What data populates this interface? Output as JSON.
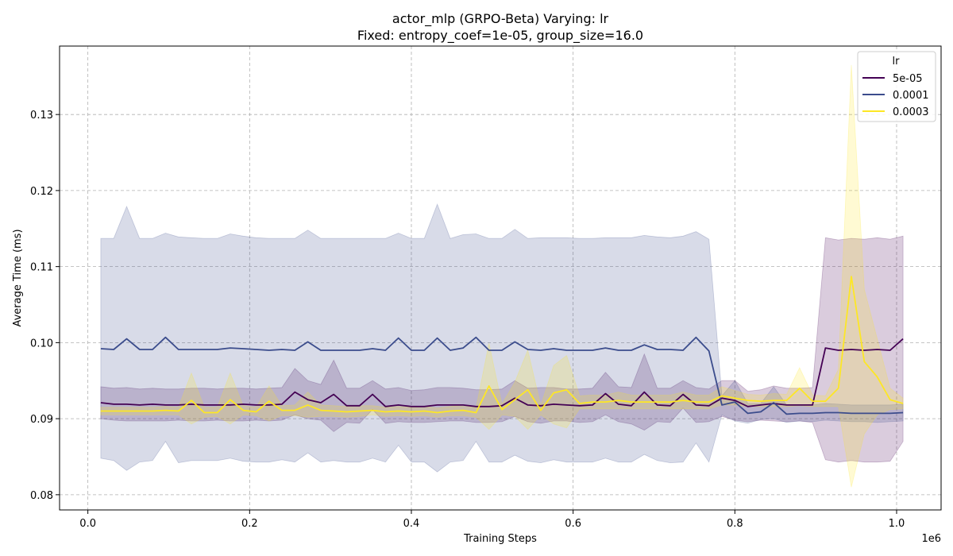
{
  "chart_data": {
    "type": "line",
    "title": "actor_mlp (GRPO-Beta) Varying: lr",
    "subtitle": "Fixed: entropy_coef=1e-05, group_size=16.0",
    "xlabel": "Training Steps",
    "ylabel": "Average Time (ms)",
    "x_scale_label": "1e6",
    "xlim": [
      -0.035,
      1.055
    ],
    "ylim": [
      0.078,
      0.139
    ],
    "x_ticks": [
      0.0,
      0.2,
      0.4,
      0.6,
      0.8,
      1.0
    ],
    "x_tick_labels": [
      "0.0",
      "0.2",
      "0.4",
      "0.6",
      "0.8",
      "1.0"
    ],
    "y_ticks": [
      0.08,
      0.09,
      0.1,
      0.11,
      0.12,
      0.13
    ],
    "y_tick_labels": [
      "0.08",
      "0.09",
      "0.10",
      "0.11",
      "0.12",
      "0.13"
    ],
    "grid": true,
    "legend": {
      "title": "lr",
      "placement": "top-right"
    },
    "x": [
      0.016,
      0.032,
      0.048,
      0.064,
      0.08,
      0.096,
      0.112,
      0.128,
      0.144,
      0.16,
      0.176,
      0.192,
      0.208,
      0.224,
      0.24,
      0.256,
      0.272,
      0.288,
      0.304,
      0.32,
      0.336,
      0.352,
      0.368,
      0.384,
      0.4,
      0.416,
      0.432,
      0.448,
      0.464,
      0.48,
      0.496,
      0.512,
      0.528,
      0.544,
      0.56,
      0.576,
      0.592,
      0.608,
      0.624,
      0.64,
      0.656,
      0.672,
      0.688,
      0.704,
      0.72,
      0.736,
      0.752,
      0.768,
      0.784,
      0.8,
      0.816,
      0.832,
      0.848,
      0.864,
      0.88,
      0.896,
      0.912,
      0.928,
      0.944,
      0.96,
      0.976,
      0.992,
      1.008
    ],
    "series": [
      {
        "name": "5e-05",
        "color": "#440154",
        "values": [
          0.0921,
          0.0919,
          0.0919,
          0.0918,
          0.0919,
          0.0918,
          0.0918,
          0.0919,
          0.0918,
          0.0918,
          0.0918,
          0.0919,
          0.0918,
          0.0918,
          0.0919,
          0.0935,
          0.0925,
          0.0921,
          0.0932,
          0.0917,
          0.0917,
          0.0932,
          0.0916,
          0.0918,
          0.0916,
          0.0916,
          0.0918,
          0.0918,
          0.0918,
          0.0916,
          0.0916,
          0.0917,
          0.0927,
          0.0918,
          0.0917,
          0.0919,
          0.0918,
          0.0917,
          0.0918,
          0.0933,
          0.0919,
          0.0917,
          0.0935,
          0.0918,
          0.0917,
          0.0932,
          0.0918,
          0.0917,
          0.0927,
          0.0924,
          0.0916,
          0.0918,
          0.092,
          0.0918,
          0.0918,
          0.0918,
          0.0993,
          0.099,
          0.0991,
          0.099,
          0.0991,
          0.099,
          0.1005
        ],
        "band_lower": [
          0.09,
          0.0898,
          0.0897,
          0.0897,
          0.0897,
          0.0897,
          0.0898,
          0.0897,
          0.0897,
          0.0898,
          0.0897,
          0.0897,
          0.0898,
          0.0897,
          0.0898,
          0.0905,
          0.09,
          0.0898,
          0.0883,
          0.0895,
          0.0894,
          0.0912,
          0.0894,
          0.0896,
          0.0895,
          0.0895,
          0.0896,
          0.0897,
          0.0897,
          0.0895,
          0.0895,
          0.0896,
          0.0903,
          0.0896,
          0.0894,
          0.0897,
          0.0897,
          0.0895,
          0.0896,
          0.0905,
          0.0896,
          0.0893,
          0.0885,
          0.0896,
          0.0895,
          0.0914,
          0.0895,
          0.0896,
          0.0903,
          0.0898,
          0.0896,
          0.0898,
          0.0897,
          0.0896,
          0.0897,
          0.0895,
          0.0846,
          0.0843,
          0.0845,
          0.0843,
          0.0843,
          0.0844,
          0.087
        ],
        "band_upper": [
          0.0942,
          0.094,
          0.0941,
          0.0939,
          0.094,
          0.0939,
          0.0939,
          0.094,
          0.094,
          0.0939,
          0.094,
          0.094,
          0.0939,
          0.094,
          0.0941,
          0.0966,
          0.095,
          0.0945,
          0.0977,
          0.094,
          0.094,
          0.095,
          0.0939,
          0.0941,
          0.0937,
          0.0938,
          0.0941,
          0.0941,
          0.094,
          0.0938,
          0.0938,
          0.0939,
          0.095,
          0.094,
          0.0941,
          0.0941,
          0.0939,
          0.0939,
          0.094,
          0.0961,
          0.0942,
          0.0941,
          0.0985,
          0.094,
          0.094,
          0.095,
          0.0941,
          0.0939,
          0.095,
          0.095,
          0.0936,
          0.0938,
          0.0943,
          0.094,
          0.094,
          0.0941,
          0.1138,
          0.1135,
          0.1137,
          0.1136,
          0.1138,
          0.1136,
          0.114
        ]
      },
      {
        "name": "0.0001",
        "color": "#3b4c8c",
        "values": [
          0.0992,
          0.0991,
          0.1005,
          0.0991,
          0.0991,
          0.1007,
          0.0991,
          0.0991,
          0.0991,
          0.0991,
          0.0993,
          0.0992,
          0.0991,
          0.099,
          0.0991,
          0.099,
          0.1001,
          0.099,
          0.099,
          0.099,
          0.099,
          0.0992,
          0.099,
          0.1006,
          0.099,
          0.099,
          0.1006,
          0.099,
          0.0993,
          0.1007,
          0.099,
          0.099,
          0.1001,
          0.0991,
          0.099,
          0.0992,
          0.099,
          0.099,
          0.099,
          0.0993,
          0.099,
          0.099,
          0.0997,
          0.0991,
          0.0991,
          0.099,
          0.1007,
          0.0989,
          0.0918,
          0.0922,
          0.0907,
          0.0909,
          0.0921,
          0.0906,
          0.0907,
          0.0907,
          0.0908,
          0.0908,
          0.0907,
          0.0907,
          0.0907,
          0.0907,
          0.0908
        ],
        "band_lower": [
          0.0848,
          0.0845,
          0.0832,
          0.0843,
          0.0845,
          0.087,
          0.0842,
          0.0845,
          0.0845,
          0.0845,
          0.0848,
          0.0844,
          0.0843,
          0.0843,
          0.0846,
          0.0843,
          0.0855,
          0.0843,
          0.0845,
          0.0843,
          0.0843,
          0.0848,
          0.0843,
          0.0865,
          0.0843,
          0.0843,
          0.083,
          0.0843,
          0.0845,
          0.087,
          0.0843,
          0.0843,
          0.0852,
          0.0844,
          0.0842,
          0.0846,
          0.0843,
          0.0843,
          0.0843,
          0.0848,
          0.0843,
          0.0843,
          0.0853,
          0.0845,
          0.0842,
          0.0843,
          0.0868,
          0.0843,
          0.0905,
          0.0897,
          0.0894,
          0.0899,
          0.09,
          0.0895,
          0.0897,
          0.0896,
          0.0898,
          0.0897,
          0.0896,
          0.0896,
          0.0895,
          0.0896,
          0.0897
        ],
        "band_upper": [
          0.1137,
          0.1137,
          0.1179,
          0.1137,
          0.1137,
          0.1144,
          0.1139,
          0.1138,
          0.1137,
          0.1137,
          0.1143,
          0.114,
          0.1138,
          0.1137,
          0.1137,
          0.1137,
          0.1148,
          0.1137,
          0.1137,
          0.1137,
          0.1137,
          0.1137,
          0.1137,
          0.1144,
          0.1137,
          0.1137,
          0.1182,
          0.1137,
          0.1142,
          0.1143,
          0.1137,
          0.1137,
          0.1149,
          0.1137,
          0.1138,
          0.1138,
          0.1138,
          0.1137,
          0.1137,
          0.1138,
          0.1138,
          0.1138,
          0.1141,
          0.1139,
          0.1138,
          0.114,
          0.1146,
          0.1136,
          0.093,
          0.095,
          0.092,
          0.092,
          0.0942,
          0.0918,
          0.0918,
          0.0918,
          0.092,
          0.0919,
          0.0918,
          0.0918,
          0.0918,
          0.0918,
          0.0919
        ]
      },
      {
        "name": "0.0003",
        "color": "#fde725",
        "values": [
          0.091,
          0.091,
          0.091,
          0.091,
          0.091,
          0.0911,
          0.091,
          0.0924,
          0.0908,
          0.0908,
          0.0925,
          0.0911,
          0.0909,
          0.0923,
          0.0911,
          0.0911,
          0.0918,
          0.0911,
          0.091,
          0.0909,
          0.091,
          0.0911,
          0.0909,
          0.091,
          0.0909,
          0.091,
          0.0908,
          0.091,
          0.0911,
          0.0908,
          0.0943,
          0.0912,
          0.0925,
          0.0938,
          0.0911,
          0.0934,
          0.0938,
          0.092,
          0.0922,
          0.0922,
          0.0924,
          0.0922,
          0.0922,
          0.0922,
          0.0922,
          0.0924,
          0.0922,
          0.0922,
          0.093,
          0.0927,
          0.0924,
          0.0923,
          0.0924,
          0.0924,
          0.094,
          0.0923,
          0.0923,
          0.094,
          0.1087,
          0.0975,
          0.0955,
          0.0925,
          0.092
        ],
        "band_lower": [
          0.0905,
          0.0905,
          0.0905,
          0.0905,
          0.0905,
          0.0905,
          0.0905,
          0.0893,
          0.0902,
          0.0903,
          0.0893,
          0.0905,
          0.0904,
          0.0897,
          0.0904,
          0.0904,
          0.0902,
          0.0903,
          0.0903,
          0.0902,
          0.0903,
          0.0905,
          0.0903,
          0.0904,
          0.0903,
          0.0904,
          0.0902,
          0.0904,
          0.0904,
          0.0902,
          0.0886,
          0.0905,
          0.0903,
          0.0886,
          0.0905,
          0.0893,
          0.0888,
          0.0913,
          0.0913,
          0.0913,
          0.0913,
          0.0913,
          0.0913,
          0.0913,
          0.0913,
          0.0913,
          0.0913,
          0.0913,
          0.0918,
          0.0918,
          0.0916,
          0.0916,
          0.0916,
          0.0916,
          0.0917,
          0.0916,
          0.0916,
          0.0916,
          0.081,
          0.088,
          0.0905,
          0.0912,
          0.0913
        ],
        "band_upper": [
          0.0915,
          0.0915,
          0.0915,
          0.0915,
          0.0915,
          0.0916,
          0.0915,
          0.096,
          0.0915,
          0.0915,
          0.096,
          0.0917,
          0.0915,
          0.0943,
          0.0917,
          0.0918,
          0.0935,
          0.0918,
          0.0917,
          0.0916,
          0.0917,
          0.0917,
          0.0915,
          0.0916,
          0.0915,
          0.0916,
          0.0914,
          0.0916,
          0.0918,
          0.0914,
          0.0999,
          0.0919,
          0.0948,
          0.099,
          0.0917,
          0.097,
          0.0983,
          0.093,
          0.0931,
          0.0931,
          0.0935,
          0.0931,
          0.0931,
          0.0931,
          0.0931,
          0.0935,
          0.0931,
          0.0931,
          0.0942,
          0.0937,
          0.0932,
          0.0931,
          0.0933,
          0.0932,
          0.0967,
          0.0931,
          0.093,
          0.0965,
          0.1365,
          0.107,
          0.1005,
          0.094,
          0.0927
        ]
      }
    ]
  }
}
